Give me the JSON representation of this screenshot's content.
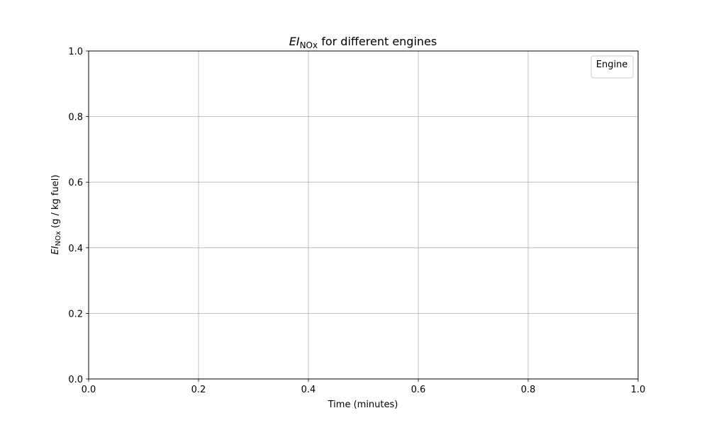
{
  "chart_data": {
    "type": "line",
    "title": {
      "italic": "EI",
      "subscript": "NOx",
      "rest": " for different engines"
    },
    "xlabel": "Time (minutes)",
    "ylabel": {
      "italic": "EI",
      "subscript": "NOx",
      "rest": " (g / kg fuel)"
    },
    "xlim": [
      0.0,
      1.0
    ],
    "ylim": [
      0.0,
      1.0
    ],
    "xticks": [
      0.0,
      0.2,
      0.4,
      0.6,
      0.8,
      1.0
    ],
    "yticks": [
      0.0,
      0.2,
      0.4,
      0.6,
      0.8,
      1.0
    ],
    "xtick_labels": [
      "0.0",
      "0.2",
      "0.4",
      "0.6",
      "0.8",
      "1.0"
    ],
    "ytick_labels": [
      "0.0",
      "0.2",
      "0.4",
      "0.6",
      "0.8",
      "1.0"
    ],
    "grid": true,
    "legend": {
      "title": "Engine",
      "placement": "top-right",
      "entries": []
    },
    "series": []
  }
}
